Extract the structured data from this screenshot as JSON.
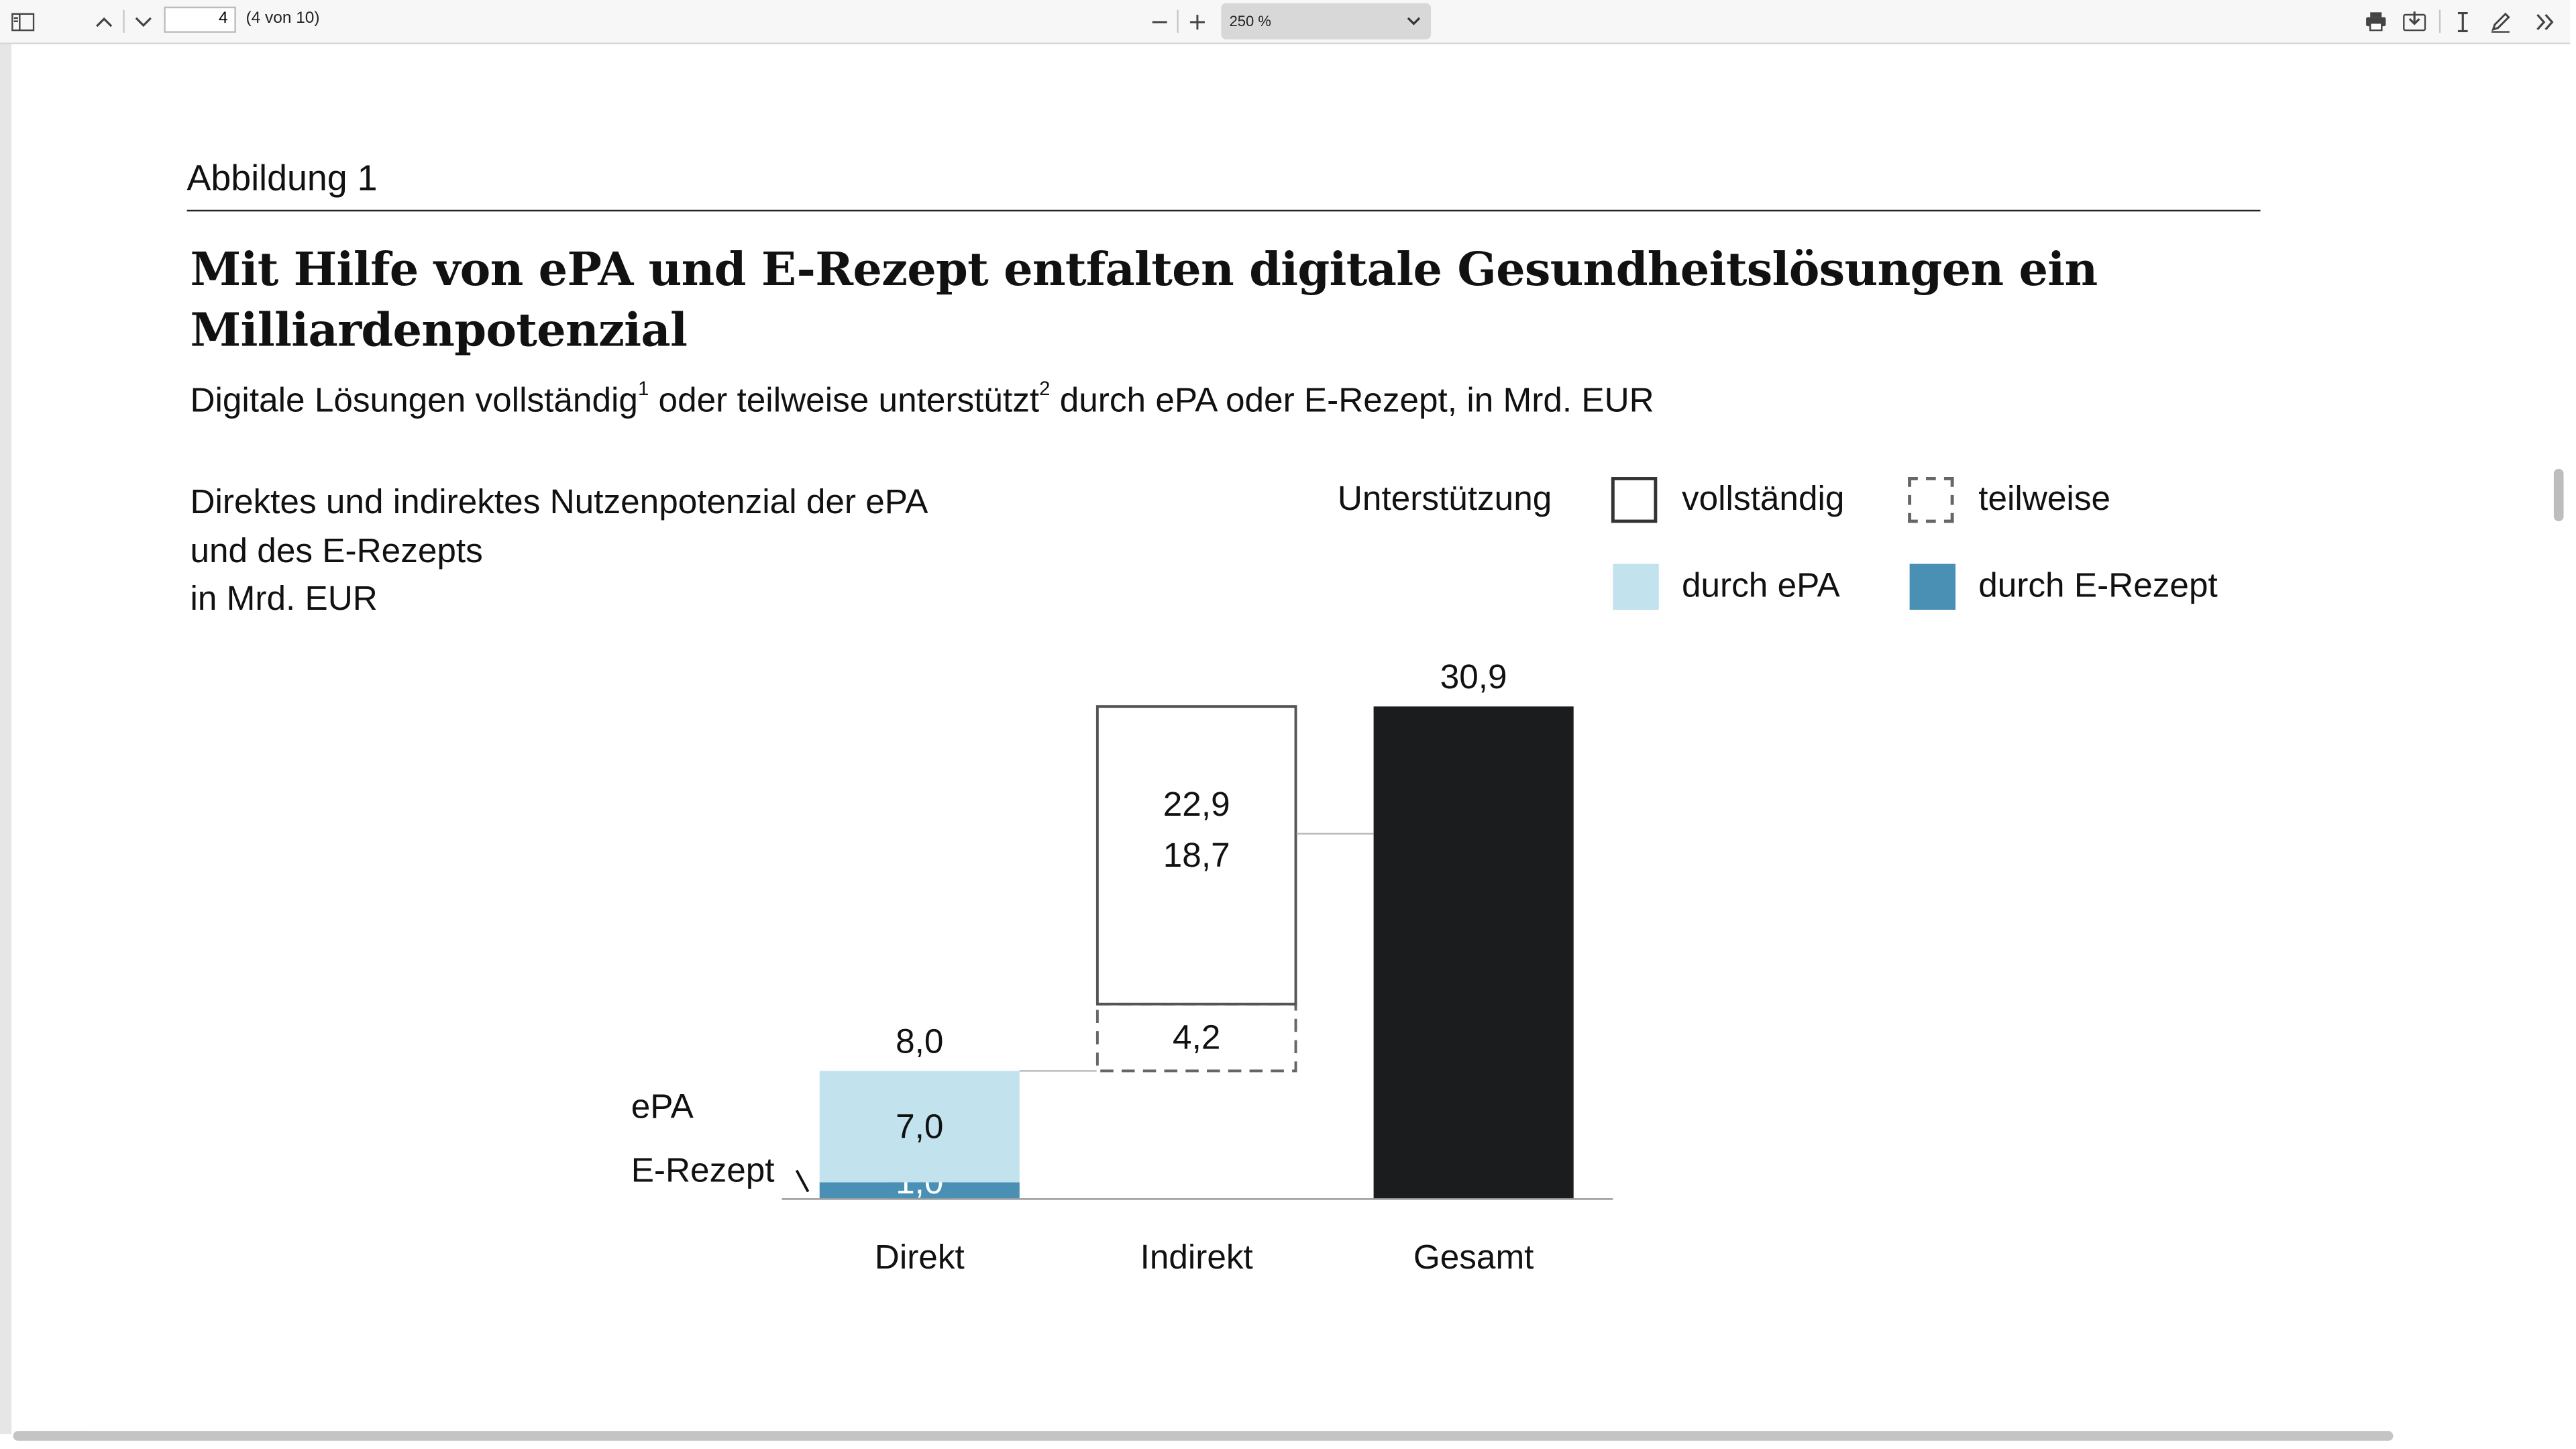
{
  "toolbar": {
    "page_current": "4",
    "page_count": "(4 von 10)",
    "zoom_value": "250 %"
  },
  "figure": {
    "label": "Abbildung 1",
    "title": "Mit Hilfe von ePA und E-Rezept entfalten digitale Gesundheitslösungen ein Milliardenpotenzial",
    "subtitle_part1": "Digitale Lösungen vollständig",
    "subtitle_sup1": "1",
    "subtitle_part2": " oder teilweise unterstützt",
    "subtitle_sup2": "2",
    "subtitle_part3": " durch ePA oder E-Rezept, in Mrd. EUR",
    "chart_heading_line1": "Direktes und indirektes Nutzenpotenzial der ePA",
    "chart_heading_line2": "und des E-Rezepts",
    "chart_heading_line3": "in Mrd. EUR"
  },
  "legend": {
    "support_label": "Unterstützung",
    "full": "vollständig",
    "partial": "teilweise",
    "epa": "durch ePA",
    "erezept": "durch E-Rezept"
  },
  "colors": {
    "epa": "#c2e2ee",
    "erezept": "#4a90b5",
    "total": "#1b1c1e"
  },
  "chart_data": {
    "type": "waterfall-bar",
    "categories": [
      "Direkt",
      "Indirekt",
      "Gesamt"
    ],
    "segments": [
      {
        "category": "Direkt",
        "name": "E-Rezept",
        "value": 1.0,
        "label": "1,0",
        "base": 0,
        "style": "erezept"
      },
      {
        "category": "Direkt",
        "name": "ePA",
        "value": 7.0,
        "label": "7,0",
        "base": 1.0,
        "style": "epa"
      },
      {
        "category": "Indirekt",
        "name": "teilweise",
        "value": 4.2,
        "label": "4,2",
        "base": 8.0,
        "style": "partial"
      },
      {
        "category": "Indirekt",
        "name": "vollständig",
        "value": 18.7,
        "label": "18,7",
        "base": 12.2,
        "style": "full"
      },
      {
        "category": "Gesamt",
        "name": "Gesamt",
        "value": 30.9,
        "label": "30,9",
        "base": 0,
        "style": "total"
      }
    ],
    "totals": [
      {
        "category": "Direkt",
        "value": 8.0,
        "label": "8,0"
      },
      {
        "category": "Indirekt",
        "value": 22.9,
        "label": "22,9"
      }
    ],
    "side_labels": {
      "epa": "ePA",
      "erezept": "E-Rezept"
    },
    "ylim": [
      0,
      30.9
    ]
  }
}
